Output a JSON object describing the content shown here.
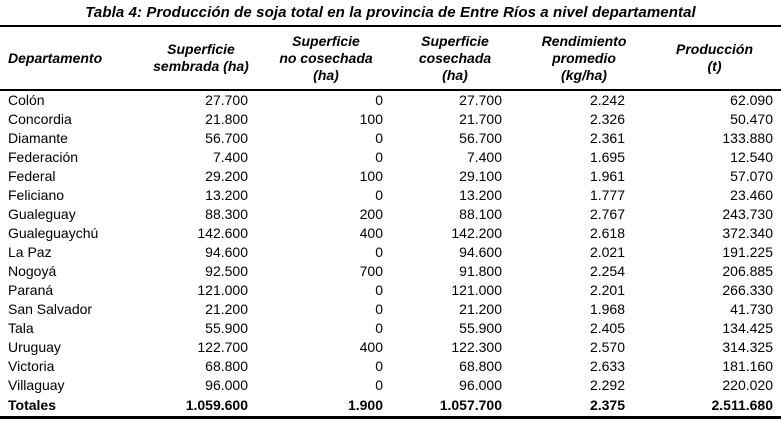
{
  "title": "Tabla 4: Producción de soja total en la provincia de Entre Ríos a nivel departamental",
  "colors": {
    "background": "#ffffff",
    "text": "#000000",
    "rule": "#000000"
  },
  "table": {
    "columns": [
      {
        "label": "Departamento"
      },
      {
        "label": "Superficie\nsembrada (ha)"
      },
      {
        "label": "Superficie\nno cosechada\n(ha)"
      },
      {
        "label": "Superficie\ncosechada\n(ha)"
      },
      {
        "label": "Rendimiento\npromedio\n(kg/ha)"
      },
      {
        "label": "Producción\n(t)"
      }
    ],
    "rows": [
      {
        "departamento": "Colón",
        "values": [
          "27.700",
          "0",
          "27.700",
          "2.242",
          "62.090"
        ]
      },
      {
        "departamento": "Concordia",
        "values": [
          "21.800",
          "100",
          "21.700",
          "2.326",
          "50.470"
        ]
      },
      {
        "departamento": "Diamante",
        "values": [
          "56.700",
          "0",
          "56.700",
          "2.361",
          "133.880"
        ]
      },
      {
        "departamento": "Federación",
        "values": [
          "7.400",
          "0",
          "7.400",
          "1.695",
          "12.540"
        ]
      },
      {
        "departamento": "Federal",
        "values": [
          "29.200",
          "100",
          "29.100",
          "1.961",
          "57.070"
        ]
      },
      {
        "departamento": "Feliciano",
        "values": [
          "13.200",
          "0",
          "13.200",
          "1.777",
          "23.460"
        ]
      },
      {
        "departamento": "Gualeguay",
        "values": [
          "88.300",
          "200",
          "88.100",
          "2.767",
          "243.730"
        ]
      },
      {
        "departamento": "Gualeguaychú",
        "values": [
          "142.600",
          "400",
          "142.200",
          "2.618",
          "372.340"
        ]
      },
      {
        "departamento": "La Paz",
        "values": [
          "94.600",
          "0",
          "94.600",
          "2.021",
          "191.225"
        ]
      },
      {
        "departamento": "Nogoyá",
        "values": [
          "92.500",
          "700",
          "91.800",
          "2.254",
          "206.885"
        ]
      },
      {
        "departamento": "Paraná",
        "values": [
          "121.000",
          "0",
          "121.000",
          "2.201",
          "266.330"
        ]
      },
      {
        "departamento": "San Salvador",
        "values": [
          "21.200",
          "0",
          "21.200",
          "1.968",
          "41.730"
        ]
      },
      {
        "departamento": "Tala",
        "values": [
          "55.900",
          "0",
          "55.900",
          "2.405",
          "134.425"
        ]
      },
      {
        "departamento": "Uruguay",
        "values": [
          "122.700",
          "400",
          "122.300",
          "2.570",
          "314.325"
        ]
      },
      {
        "departamento": "Victoria",
        "values": [
          "68.800",
          "0",
          "68.800",
          "2.633",
          "181.160"
        ]
      },
      {
        "departamento": "Villaguay",
        "values": [
          "96.000",
          "0",
          "96.000",
          "2.292",
          "220.020"
        ]
      }
    ],
    "totals": {
      "label": "Totales",
      "values": [
        "1.059.600",
        "1.900",
        "1.057.700",
        "2.375",
        "2.511.680"
      ]
    }
  }
}
